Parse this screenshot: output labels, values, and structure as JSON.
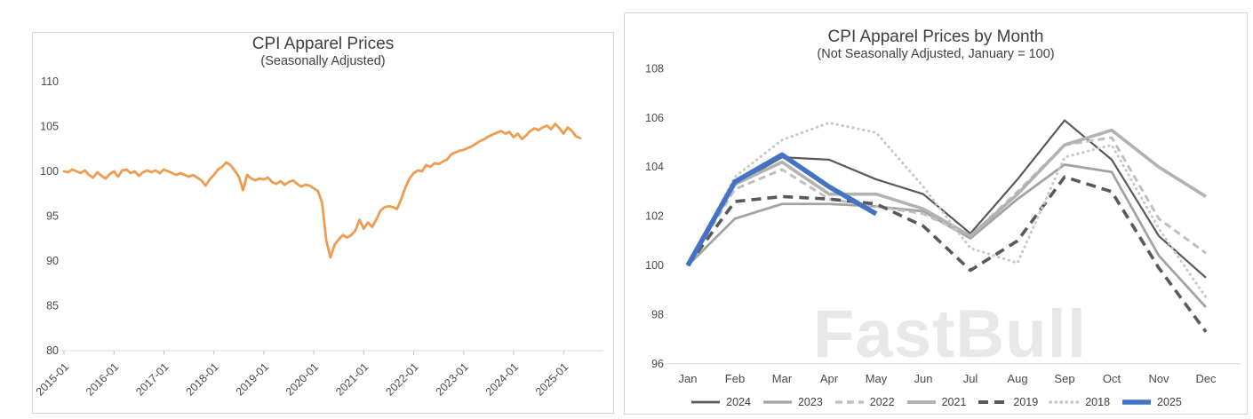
{
  "watermark": "FastBull",
  "chart_data": [
    {
      "type": "line",
      "title": "CPI Apparel Prices",
      "subtitle": "(Seasonally Adjusted)",
      "xlabel": "",
      "ylabel": "",
      "ylim": [
        80,
        110
      ],
      "y_ticks": [
        110,
        105,
        100,
        95,
        90,
        85,
        80
      ],
      "x_ticks": [
        "2015-01",
        "2016-01",
        "2017-01",
        "2018-01",
        "2019-01",
        "2020-01",
        "2021-01",
        "2022-01",
        "2023-01",
        "2024-01",
        "2025-01"
      ],
      "x_start": "2015-01",
      "x_interval": "monthly",
      "grid": "off",
      "line_color": "#ED9C51",
      "values": [
        100.0,
        99.9,
        100.2,
        100.0,
        99.8,
        100.1,
        99.6,
        99.3,
        99.9,
        99.5,
        99.2,
        99.7,
        100.0,
        99.4,
        100.1,
        100.2,
        99.8,
        100.0,
        99.5,
        99.9,
        100.1,
        99.9,
        100.1,
        99.8,
        100.2,
        100.0,
        99.8,
        99.6,
        99.8,
        99.6,
        99.4,
        99.6,
        99.3,
        99.0,
        98.4,
        99.1,
        99.6,
        100.2,
        100.5,
        101.0,
        100.7,
        100.1,
        99.4,
        97.9,
        99.6,
        99.2,
        99.0,
        99.2,
        99.1,
        99.3,
        98.8,
        98.6,
        98.9,
        98.5,
        98.8,
        99.0,
        98.6,
        98.3,
        98.5,
        98.4,
        98.1,
        97.8,
        96.5,
        92.3,
        90.4,
        91.8,
        92.4,
        92.9,
        92.6,
        92.9,
        93.4,
        94.6,
        93.6,
        94.3,
        93.8,
        94.6,
        95.6,
        96.0,
        96.1,
        96.0,
        95.8,
        96.9,
        98.2,
        99.2,
        99.8,
        100.1,
        100.0,
        100.7,
        100.5,
        100.9,
        100.8,
        101.1,
        101.3,
        101.9,
        102.1,
        102.3,
        102.4,
        102.6,
        102.8,
        103.1,
        103.4,
        103.6,
        103.9,
        104.1,
        104.3,
        104.5,
        104.2,
        104.4,
        103.8,
        104.2,
        103.6,
        104.0,
        104.5,
        104.8,
        104.6,
        104.9,
        105.1,
        104.7,
        105.3,
        104.8,
        104.2,
        104.9,
        104.5,
        103.9,
        103.7
      ]
    },
    {
      "type": "line",
      "title": "CPI Apparel Prices by Month",
      "subtitle": "(Not Seasonally Adjusted, January = 100)",
      "xlabel": "",
      "ylabel": "",
      "ylim": [
        96,
        108
      ],
      "y_ticks": [
        108,
        106,
        104,
        102,
        100,
        98,
        96
      ],
      "months": [
        "Jan",
        "Feb",
        "Mar",
        "Apr",
        "May",
        "Jun",
        "Jul",
        "Aug",
        "Sep",
        "Oct",
        "Nov",
        "Dec"
      ],
      "grid": "off",
      "legend_position": "bottom",
      "series": [
        {
          "name": "2024",
          "color": "#595959",
          "width": 2.2,
          "dash": "",
          "dot": false,
          "values": [
            100,
            103.3,
            104.4,
            104.3,
            103.5,
            102.9,
            101.3,
            103.5,
            105.9,
            104.3,
            101.2,
            99.5
          ]
        },
        {
          "name": "2023",
          "color": "#A3A3A3",
          "width": 2.8,
          "dash": "",
          "dot": false,
          "values": [
            100,
            101.9,
            102.5,
            102.5,
            102.4,
            102.2,
            101.1,
            102.7,
            104.1,
            103.8,
            100.4,
            98.3
          ]
        },
        {
          "name": "2022",
          "color": "#BFBFBF",
          "width": 3,
          "dash": "8 5",
          "dot": false,
          "values": [
            100,
            103.1,
            103.9,
            102.7,
            102.4,
            102.1,
            101.2,
            103.0,
            104.9,
            105.2,
            101.9,
            100.5
          ]
        },
        {
          "name": "2021",
          "color": "#B2B2B2",
          "width": 3.6,
          "dash": "",
          "dot": false,
          "values": [
            100,
            103.3,
            104.2,
            102.9,
            102.9,
            102.3,
            101.2,
            102.9,
            104.9,
            105.5,
            104.0,
            102.8
          ]
        },
        {
          "name": "2019",
          "color": "#595959",
          "width": 3.6,
          "dash": "11 7",
          "dot": false,
          "values": [
            100,
            102.6,
            102.8,
            102.7,
            102.5,
            101.6,
            99.8,
            101.0,
            103.6,
            103.0,
            99.9,
            97.3
          ]
        },
        {
          "name": "2018",
          "color": "#C8C8C8",
          "width": 3,
          "dash": "0.5 5.5",
          "dot": true,
          "values": [
            100,
            103.6,
            105.1,
            105.8,
            105.4,
            103.2,
            100.7,
            100.1,
            104.4,
            104.9,
            101.5,
            98.7
          ]
        },
        {
          "name": "2025",
          "color": "#4472C4",
          "width": 5.5,
          "dash": "",
          "dot": false,
          "values": [
            100,
            103.4,
            104.5,
            103.2,
            102.1
          ]
        }
      ]
    }
  ]
}
